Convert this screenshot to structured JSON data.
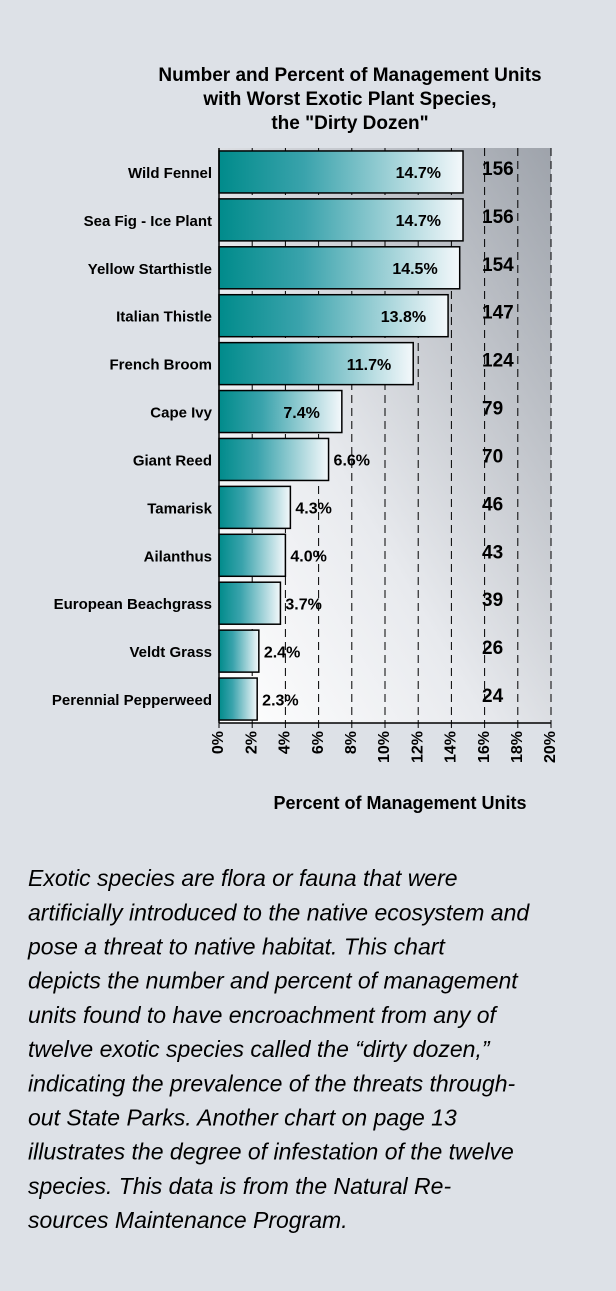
{
  "chart_data": {
    "type": "bar",
    "orientation": "horizontal",
    "title": [
      "Number and Percent of Management Units",
      "with Worst Exotic Plant Species,",
      "the \"Dirty Dozen\""
    ],
    "categories": [
      "Wild Fennel",
      "Sea Fig - Ice Plant",
      "Yellow Starthistle",
      "Italian Thistle",
      "French Broom",
      "Cape Ivy",
      "Giant Reed",
      "Tamarisk",
      "Ailanthus",
      "European Beachgrass",
      "Veldt Grass",
      "Perennial Pepperweed"
    ],
    "values": [
      14.7,
      14.7,
      14.5,
      13.8,
      11.7,
      7.4,
      6.6,
      4.3,
      4.0,
      3.7,
      2.4,
      2.3
    ],
    "value_labels": [
      "14.7%",
      "14.7%",
      "14.5%",
      "13.8%",
      "11.7%",
      "7.4%",
      "6.6%",
      "4.3%",
      "4.0%",
      "3.7%",
      "2.4%",
      "2.3%"
    ],
    "counts": [
      156,
      156,
      154,
      147,
      124,
      79,
      70,
      46,
      43,
      39,
      26,
      24
    ],
    "color": "#008b8b",
    "xlim": [
      0,
      20
    ],
    "xticks": [
      {
        "value": 0,
        "label": "0%"
      },
      {
        "value": 2,
        "label": "2%"
      },
      {
        "value": 4,
        "label": "4%"
      },
      {
        "value": 6,
        "label": "6%"
      },
      {
        "value": 8,
        "label": "8%"
      },
      {
        "value": 10,
        "label": "10%"
      },
      {
        "value": 12,
        "label": "12%"
      },
      {
        "value": 14,
        "label": "14%"
      },
      {
        "value": 16,
        "label": "16%"
      },
      {
        "value": 18,
        "label": "18%"
      },
      {
        "value": 20,
        "label": "20%"
      }
    ],
    "xlabel": "Percent of Management Units",
    "grid": true
  },
  "caption": [
    "Exotic species are flora or fauna that were",
    "artificially introduced to the native ecosystem and",
    "pose a threat to native habitat.  This chart",
    "depicts the number and percent of management",
    "units found to have encroachment from any of",
    "twelve exotic species called the “dirty dozen,”",
    "indicating the prevalence of the threats through-",
    "out State Parks.  Another chart on page 13",
    "illustrates the degree of infestation of the twelve",
    "species.  This data is from the Natural Re-",
    "sources Maintenance Program."
  ]
}
